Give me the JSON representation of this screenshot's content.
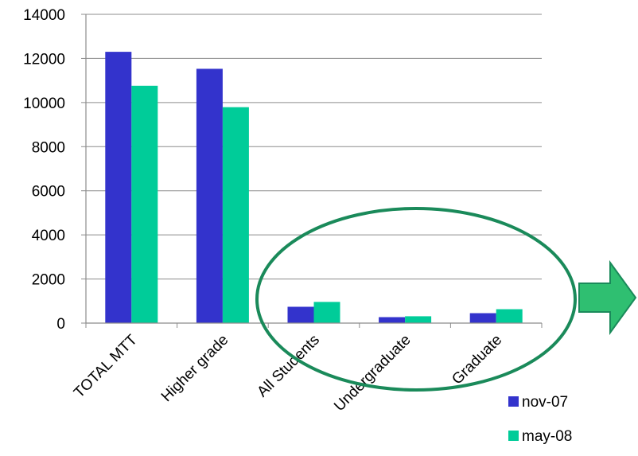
{
  "chart_data": {
    "type": "bar",
    "categories": [
      "TOTAL MTT",
      "Higher grade",
      "All Students",
      "Undergraduate",
      "Graduate"
    ],
    "series": [
      {
        "name": "nov-07",
        "color": "#3333CC",
        "values": [
          12300,
          11530,
          740,
          270,
          450
        ]
      },
      {
        "name": "may-08",
        "color": "#00CC99",
        "values": [
          10760,
          9790,
          960,
          310,
          630
        ]
      }
    ],
    "ylim": [
      0,
      14000
    ],
    "yticks": [
      0,
      2000,
      4000,
      6000,
      8000,
      10000,
      12000,
      14000
    ],
    "grid": true,
    "legend_position": "bottom-right",
    "annotation": {
      "shape": "ellipse",
      "color": "#1A8A5A",
      "arrow_color": "#2FBF71",
      "arrow_outline": "#1A8A5A"
    }
  }
}
